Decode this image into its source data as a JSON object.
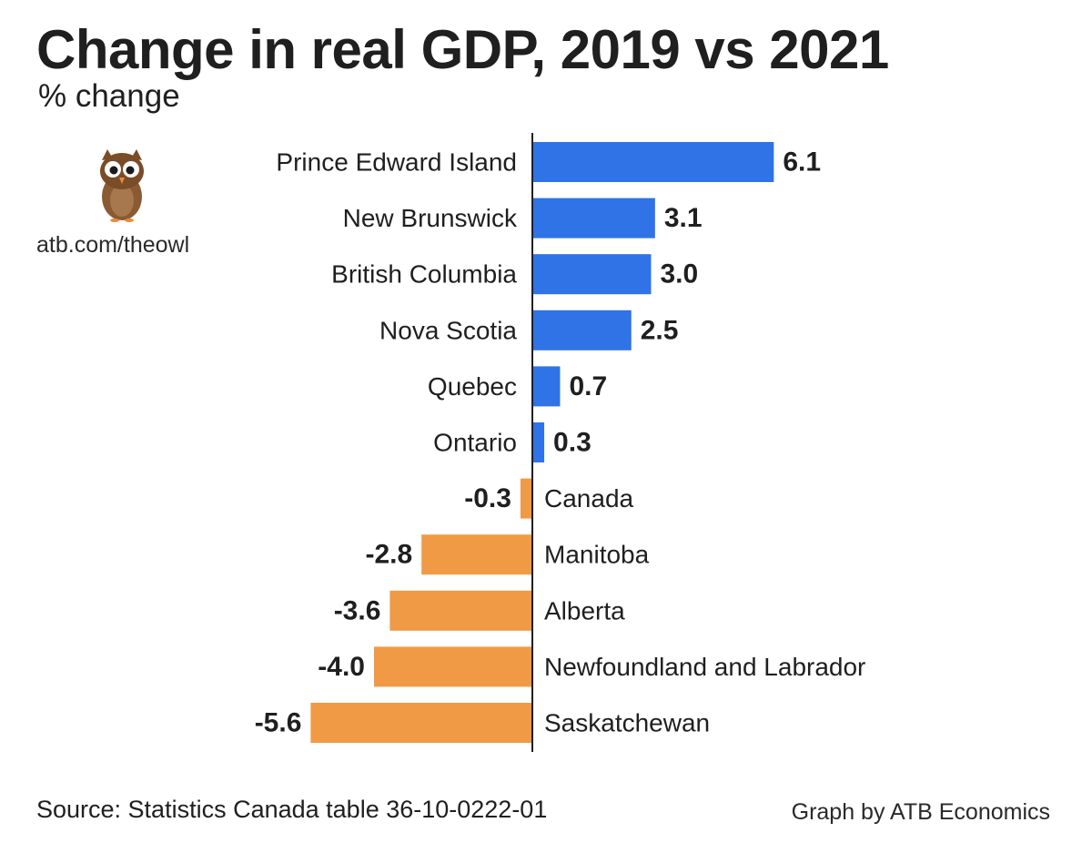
{
  "header": {
    "title": "Change in real GDP, 2019 vs 2021",
    "subtitle": "% change"
  },
  "branding": {
    "logo_icon": "owl-icon",
    "url": "atb.com/theowl",
    "credit": "Graph by ATB Economics"
  },
  "footer": {
    "source": "Source: Statistics Canada table 36-10-0222-01"
  },
  "colors": {
    "positive": "#2f73e6",
    "negative": "#f09a45",
    "text": "#1f1f1f",
    "axis": "#1f1f1f"
  },
  "chart_data": {
    "type": "bar",
    "orientation": "horizontal",
    "title": "Change in real GDP, 2019 vs 2021",
    "subtitle": "% change",
    "xlim": [
      -5.6,
      6.1
    ],
    "grid": false,
    "legend": "none",
    "categories": [
      "Prince Edward Island",
      "New Brunswick",
      "British Columbia",
      "Nova Scotia",
      "Quebec",
      "Ontario",
      "Canada",
      "Manitoba",
      "Alberta",
      "Newfoundland and Labrador",
      "Saskatchewan"
    ],
    "values": [
      6.1,
      3.1,
      3.0,
      2.5,
      0.7,
      0.3,
      -0.3,
      -2.8,
      -3.6,
      -4.0,
      -5.6
    ],
    "value_labels": [
      "6.1",
      "3.1",
      "3.0",
      "2.5",
      "0.7",
      "0.3",
      "-0.3",
      "-2.8",
      "-3.6",
      "-4.0",
      "-5.6"
    ]
  }
}
